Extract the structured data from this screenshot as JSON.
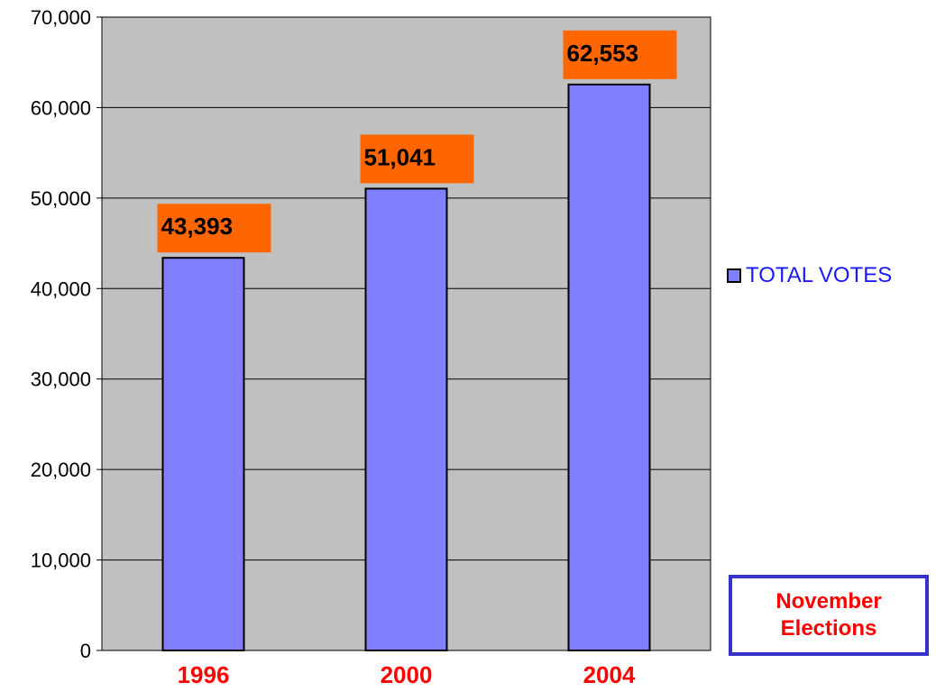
{
  "chart_data": {
    "type": "bar",
    "categories": [
      "1996",
      "2000",
      "2004"
    ],
    "series": [
      {
        "name": "TOTAL VOTES",
        "values": [
          43393,
          51041,
          62553
        ]
      }
    ],
    "data_labels": [
      "43,393",
      "51,041",
      "62,553"
    ],
    "y_ticks": [
      "0",
      "10,000",
      "20,000",
      "30,000",
      "40,000",
      "50,000",
      "60,000",
      "70,000"
    ],
    "ylim": [
      0,
      70000
    ],
    "grid": true,
    "legend_position": "right",
    "title": "",
    "xlabel": "",
    "ylabel": "",
    "colors": {
      "bar_fill": "#8080ff",
      "plot_background": "#c0c0c0",
      "data_label_background": "#ff6600",
      "category_label": "#ff0000",
      "legend_text": "#1a1aff"
    }
  },
  "legend": {
    "label": "TOTAL VOTES"
  },
  "annotation": {
    "line1": "November",
    "line2": "Elections"
  }
}
